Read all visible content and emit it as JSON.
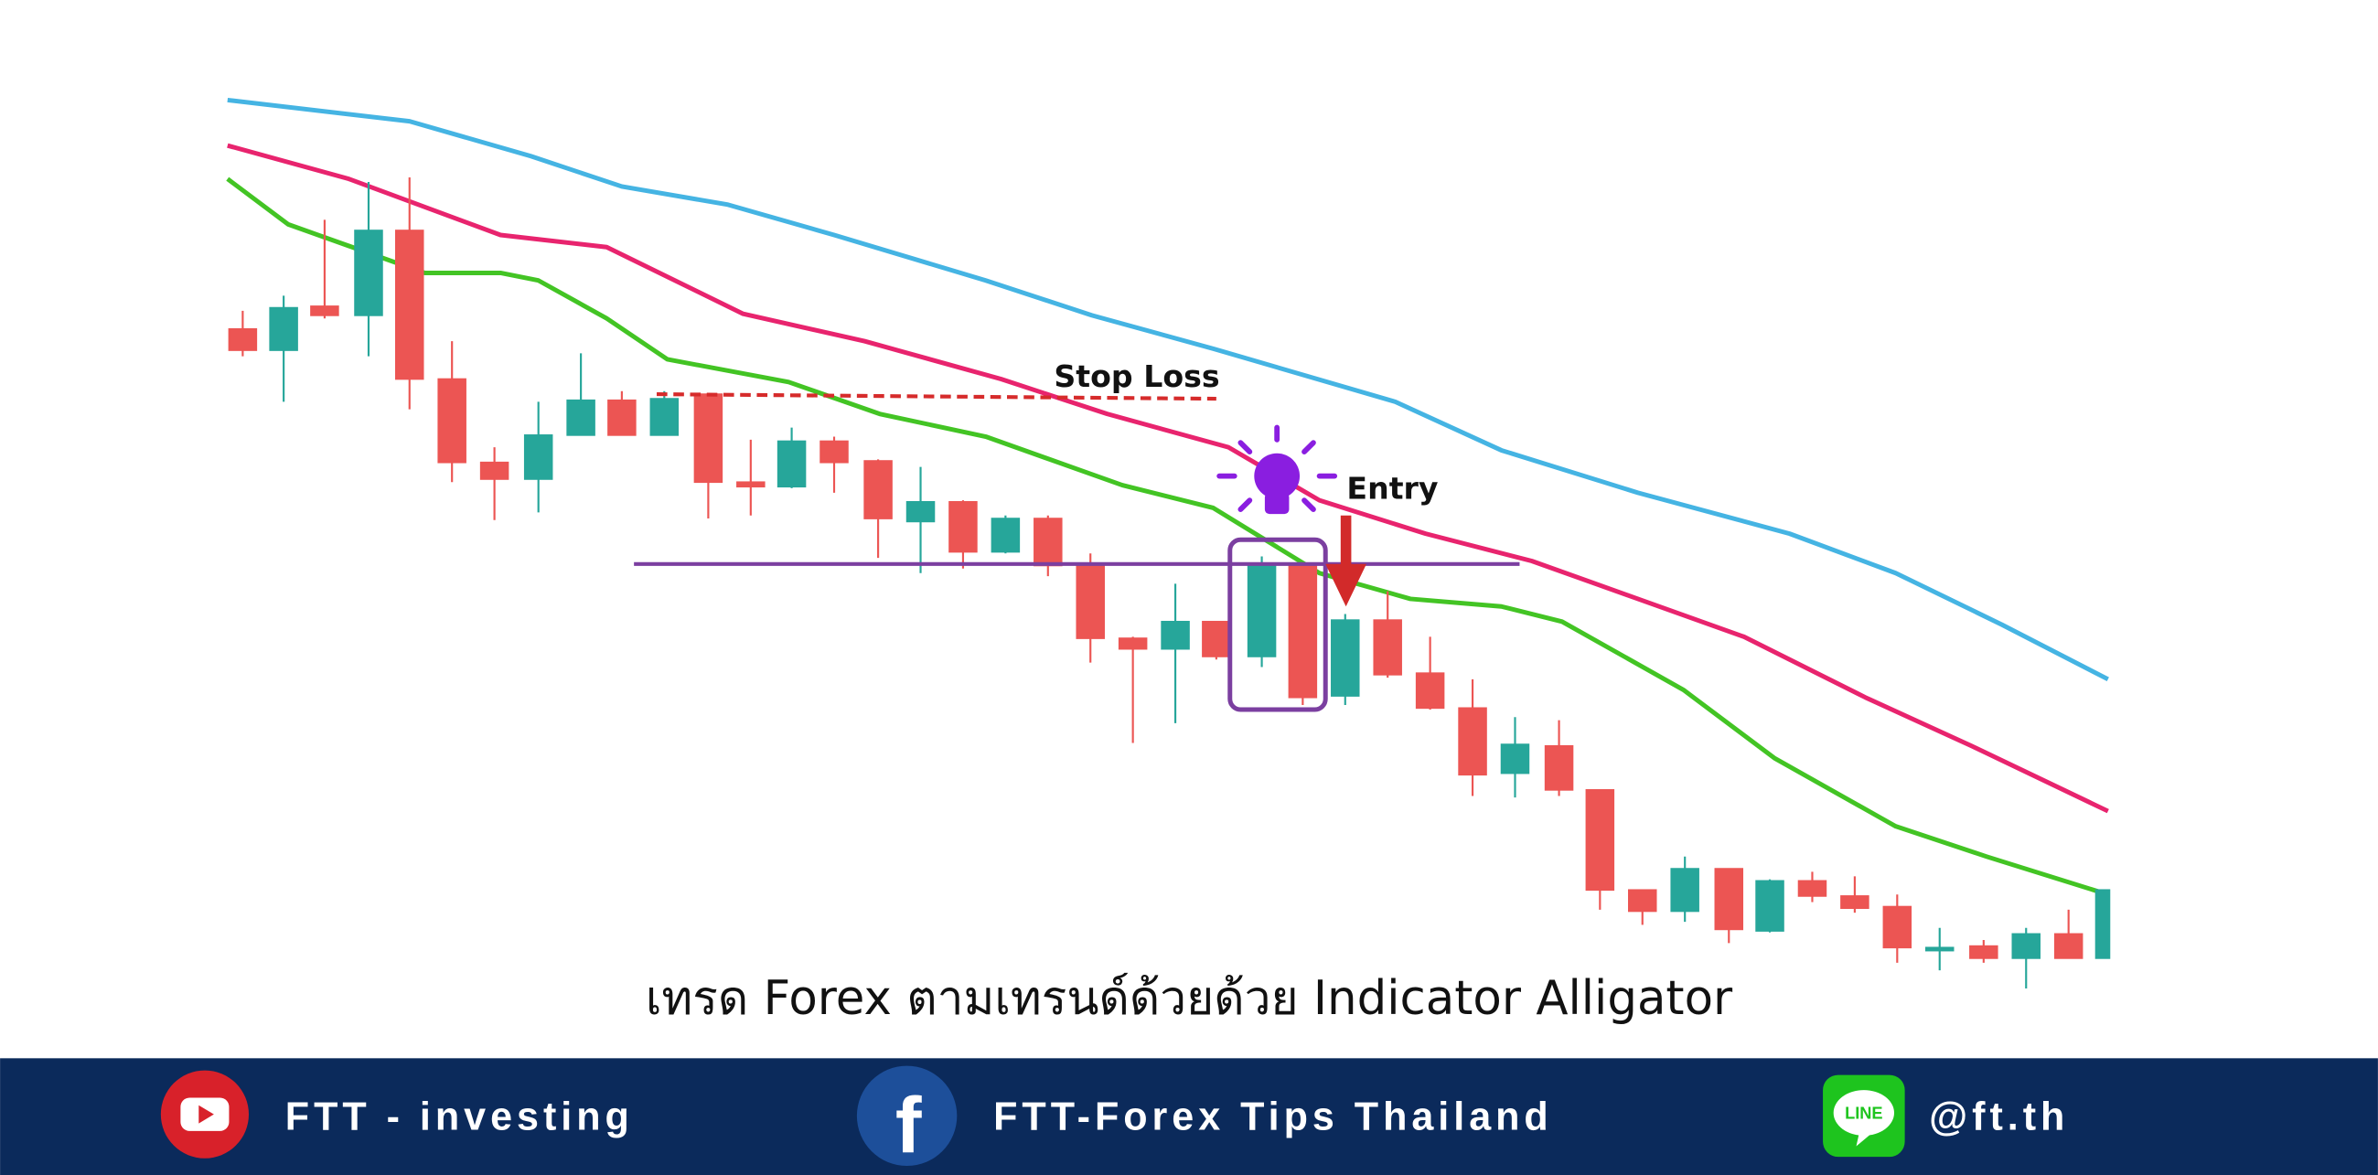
{
  "chart_image": {
    "annotations": {
      "stop_loss": "Stop Loss",
      "entry": "Entry"
    }
  },
  "caption": "เทรด Forex ตามเทรนด์ด้วยด้วย Indicator Alligator",
  "footer": {
    "youtube": "FTT - investing",
    "facebook": "FTT-Forex Tips Thailand",
    "line_icon": "LINE",
    "line": "@ft.th"
  }
}
